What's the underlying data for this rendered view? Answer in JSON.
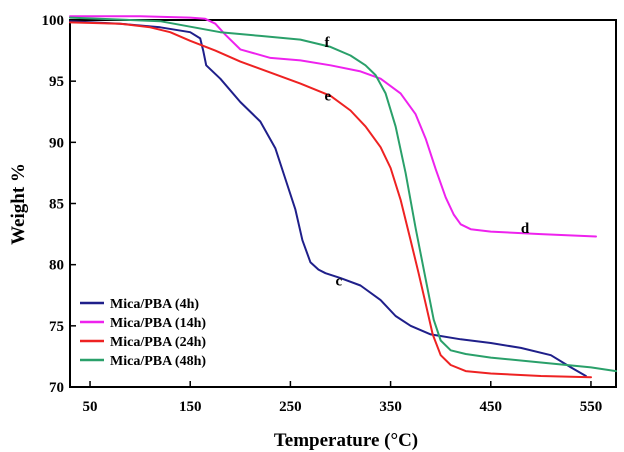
{
  "chart_data": {
    "type": "line",
    "xlabel": "Temperature (°C)",
    "ylabel": "Weight %",
    "xlim": [
      30,
      575
    ],
    "ylim": [
      70,
      100
    ],
    "xticks": [
      50,
      150,
      250,
      350,
      450,
      550
    ],
    "yticks": [
      70,
      75,
      80,
      85,
      90,
      95,
      100
    ],
    "legend_position": "bottom-left",
    "series": [
      {
        "name": "Mica/PBA (4h)",
        "color": "#1f1f8a",
        "annotation": "c",
        "annotation_at": [
          295,
          78.3
        ],
        "x": [
          30,
          80,
          120,
          150,
          160,
          163,
          166,
          180,
          200,
          220,
          235,
          245,
          255,
          262,
          270,
          278,
          285,
          300,
          320,
          340,
          355,
          370,
          390,
          420,
          450,
          480,
          510,
          530,
          545
        ],
        "y": [
          99.9,
          99.7,
          99.4,
          99.0,
          98.5,
          97.5,
          96.3,
          95.2,
          93.3,
          91.7,
          89.5,
          87.0,
          84.5,
          82.0,
          80.2,
          79.6,
          79.3,
          78.9,
          78.3,
          77.1,
          75.8,
          75.0,
          74.3,
          73.9,
          73.6,
          73.2,
          72.6,
          71.6,
          70.9
        ]
      },
      {
        "name": "Mica/PBA (14h)",
        "color": "#ee22ee",
        "annotation": "d",
        "annotation_at": [
          480,
          82.6
        ],
        "x": [
          30,
          100,
          150,
          165,
          175,
          185,
          200,
          230,
          260,
          290,
          320,
          340,
          360,
          375,
          385,
          395,
          405,
          413,
          420,
          430,
          450,
          500,
          555
        ],
        "y": [
          100.3,
          100.3,
          100.2,
          100.1,
          99.7,
          98.8,
          97.6,
          96.9,
          96.7,
          96.3,
          95.8,
          95.2,
          94.0,
          92.3,
          90.3,
          87.8,
          85.5,
          84.1,
          83.3,
          82.9,
          82.7,
          82.5,
          82.3
        ]
      },
      {
        "name": "Mica/PBA (24h)",
        "color": "#ee2222",
        "annotation": "e",
        "annotation_at": [
          284,
          93.4
        ],
        "x": [
          30,
          80,
          110,
          130,
          150,
          175,
          200,
          230,
          260,
          290,
          310,
          325,
          340,
          350,
          360,
          370,
          378,
          385,
          392,
          400,
          410,
          425,
          450,
          500,
          550
        ],
        "y": [
          99.8,
          99.7,
          99.4,
          99.0,
          98.3,
          97.5,
          96.6,
          95.7,
          94.8,
          93.8,
          92.6,
          91.3,
          89.6,
          87.9,
          85.3,
          82.0,
          79.3,
          76.8,
          74.3,
          72.6,
          71.8,
          71.3,
          71.1,
          70.9,
          70.8
        ]
      },
      {
        "name": "Mica/PBA (48h)",
        "color": "#2aa06a",
        "annotation": "f",
        "annotation_at": [
          284,
          97.8
        ],
        "x": [
          30,
          120,
          180,
          220,
          260,
          290,
          310,
          325,
          335,
          345,
          355,
          365,
          375,
          385,
          393,
          400,
          410,
          425,
          450,
          500,
          550,
          575
        ],
        "y": [
          100.2,
          99.9,
          99.0,
          98.7,
          98.4,
          97.8,
          97.1,
          96.3,
          95.5,
          94.0,
          91.3,
          87.5,
          83.0,
          78.8,
          75.5,
          73.8,
          73.0,
          72.7,
          72.4,
          72.0,
          71.6,
          71.3
        ]
      }
    ]
  }
}
